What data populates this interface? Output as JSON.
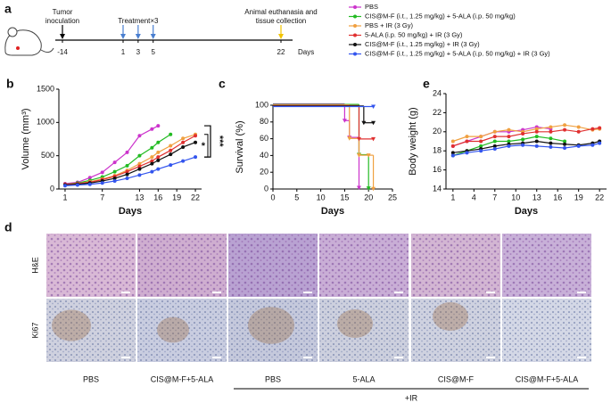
{
  "timeline": {
    "label": "a",
    "ticks": [
      -14,
      1,
      3,
      5,
      22
    ],
    "tick_colors": [
      "#000000",
      "#4a7fd0",
      "#4a7fd0",
      "#4a7fd0",
      "#f2c400"
    ],
    "unit": "Days",
    "annotations": [
      {
        "lines": [
          "Tumor",
          "inoculation"
        ],
        "day": -14
      },
      {
        "lines": [
          "Treatment×3"
        ],
        "day": 3
      },
      {
        "lines": [
          "Animal euthanasia and",
          "tissue collection"
        ],
        "day": 22
      }
    ]
  },
  "chart_data": [
    {
      "type": "line",
      "panel_label": "b",
      "xlabel": "Days",
      "ylabel": "Volume (mm³)",
      "x": [
        1,
        3,
        5,
        7,
        9,
        11,
        13,
        15,
        16,
        18,
        20,
        22
      ],
      "xlim": [
        0,
        23
      ],
      "xticks": [
        1,
        7,
        13,
        16,
        19,
        22
      ],
      "ylim": [
        0,
        1500
      ],
      "yticks": [
        0,
        500,
        1000,
        1500
      ],
      "annotations": [
        "***",
        "*"
      ],
      "series": [
        {
          "name": "PBS",
          "color": "#cc33cc",
          "values": [
            80,
            100,
            170,
            250,
            400,
            550,
            800,
            900,
            950,
            null,
            null,
            null
          ]
        },
        {
          "name": "CIS@M-F  (i.t., 1.25 mg/kg) + 5-ALA  (i.p. 50 mg/kg)",
          "color": "#22bb22",
          "values": [
            70,
            90,
            130,
            180,
            260,
            350,
            500,
            620,
            700,
            820,
            null,
            null
          ]
        },
        {
          "name": "PBS + IR (3 Gy)",
          "color": "#f0a040",
          "values": [
            70,
            80,
            110,
            150,
            200,
            280,
            380,
            480,
            550,
            650,
            760,
            820
          ]
        },
        {
          "name": "5-ALA  (i.p. 50 mg/kg) + IR (3 Gy)",
          "color": "#e03030",
          "values": [
            70,
            80,
            100,
            140,
            190,
            260,
            340,
            420,
            480,
            580,
            700,
            800
          ]
        },
        {
          "name": "CIS@M-F  (i.t., 1.25 mg/kg) + IR (3 Gy)",
          "color": "#111111",
          "values": [
            60,
            70,
            90,
            120,
            160,
            220,
            300,
            380,
            430,
            520,
            630,
            700
          ]
        },
        {
          "name": "CIS@M-F  (i.t., 1.25 mg/kg) + 5-ALA  (i.p. 50 mg/kg) + IR (3 Gy)",
          "color": "#3355ee",
          "values": [
            50,
            60,
            70,
            90,
            120,
            160,
            210,
            260,
            300,
            360,
            420,
            480
          ]
        }
      ]
    },
    {
      "type": "step",
      "panel_label": "c",
      "xlabel": "Days",
      "ylabel": "Survival (%)",
      "xlim": [
        0,
        25
      ],
      "xticks": [
        0,
        5,
        10,
        15,
        20,
        25
      ],
      "ylim": [
        0,
        100
      ],
      "yticks": [
        0,
        20,
        40,
        60,
        80,
        100
      ],
      "series": [
        {
          "color": "#cc33cc",
          "x": [
            0,
            15,
            16,
            18
          ],
          "values": [
            100,
            80,
            60,
            0
          ]
        },
        {
          "color": "#22bb22",
          "x": [
            0,
            18,
            20
          ],
          "values": [
            100,
            40,
            0
          ]
        },
        {
          "color": "#f0a040",
          "x": [
            0,
            16,
            18,
            20,
            21
          ],
          "values": [
            100,
            60,
            40,
            40,
            0
          ]
        },
        {
          "color": "#e03030",
          "x": [
            0,
            18,
            21
          ],
          "values": [
            100,
            60,
            60
          ]
        },
        {
          "color": "#111111",
          "x": [
            0,
            19,
            21
          ],
          "values": [
            100,
            80,
            80
          ]
        },
        {
          "color": "#3355ee",
          "x": [
            0,
            21
          ],
          "values": [
            100,
            100
          ]
        }
      ]
    },
    {
      "type": "line",
      "panel_label": "e",
      "xlabel": "Days",
      "ylabel": "Body weight (g)",
      "x": [
        1,
        3,
        5,
        7,
        9,
        11,
        13,
        15,
        17,
        19,
        21,
        22
      ],
      "xlim": [
        0,
        23
      ],
      "xticks": [
        1,
        4,
        7,
        10,
        13,
        16,
        19,
        22
      ],
      "ylim": [
        14,
        24
      ],
      "yticks": [
        14,
        16,
        18,
        20,
        22,
        24
      ],
      "series": [
        {
          "color": "#cc33cc",
          "values": [
            18.5,
            19,
            19.5,
            20,
            20,
            20.2,
            20.5,
            20.3,
            null,
            null,
            null,
            null
          ]
        },
        {
          "color": "#22bb22",
          "values": [
            17.5,
            18,
            18.5,
            19,
            19,
            19.2,
            19.5,
            19.3,
            19,
            null,
            null,
            null
          ]
        },
        {
          "color": "#f0a040",
          "values": [
            19,
            19.5,
            19.5,
            20,
            20.2,
            20,
            20.3,
            20.5,
            20.7,
            20.5,
            20.2,
            20.3
          ]
        },
        {
          "color": "#e03030",
          "values": [
            18.5,
            19,
            19,
            19.5,
            19.5,
            19.8,
            20,
            20,
            20.2,
            20,
            20.3,
            20.4
          ]
        },
        {
          "color": "#111111",
          "values": [
            17.8,
            18,
            18.2,
            18.5,
            18.7,
            18.8,
            19,
            18.8,
            18.7,
            18.6,
            18.8,
            19
          ]
        },
        {
          "color": "#3355ee",
          "values": [
            17.5,
            17.8,
            18,
            18.2,
            18.5,
            18.6,
            18.5,
            18.4,
            18.3,
            18.5,
            18.6,
            18.8
          ]
        }
      ]
    }
  ],
  "histology": {
    "label": "d",
    "rows": [
      "H&E",
      "Ki67"
    ],
    "columns": [
      "PBS",
      "CIS@M-F+5-ALA",
      "PBS",
      "5-ALA",
      "CIS@M-F",
      "CIS@M-F+5-ALA"
    ],
    "group": "+IR"
  }
}
